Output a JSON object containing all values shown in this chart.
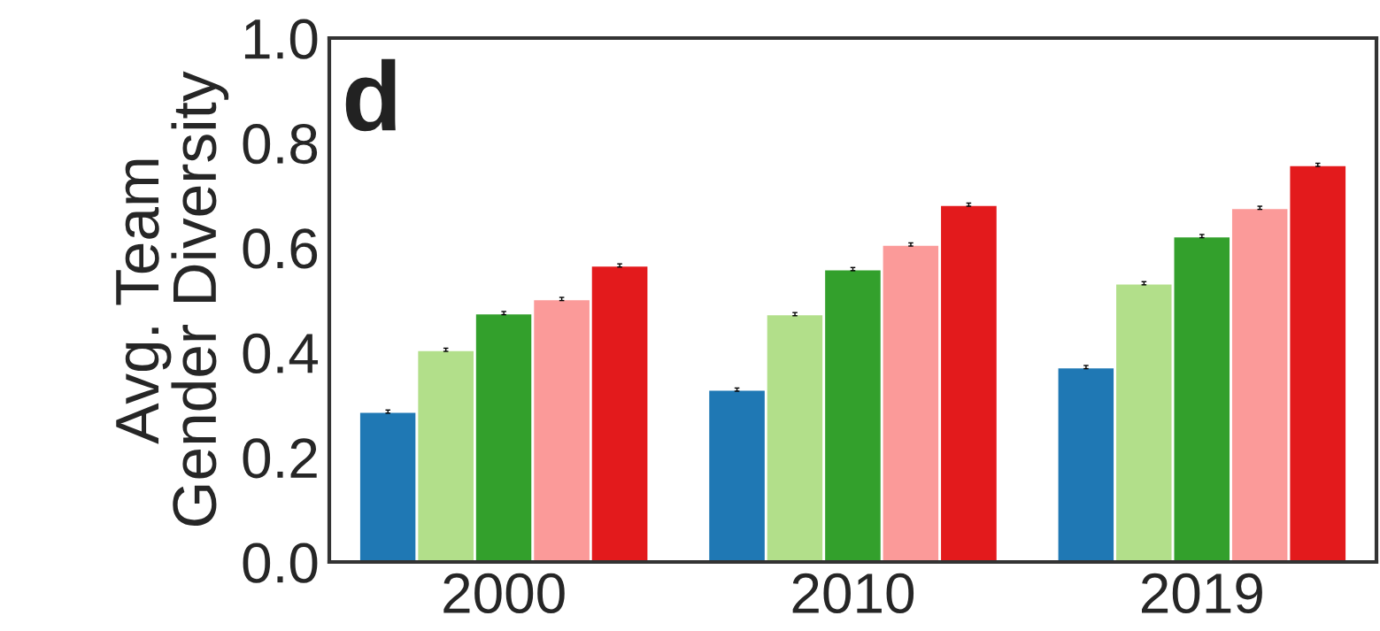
{
  "chart_data": {
    "type": "bar",
    "ylabel": "Avg. Team\nGender Diversity",
    "categories": [
      "2000",
      "2010",
      "2019"
    ],
    "series": [
      {
        "color": "#1f78b4",
        "values": [
          0.287,
          0.329,
          0.372
        ],
        "errors": [
          0.003,
          0.003,
          0.003
        ]
      },
      {
        "color": "#b2df8a",
        "values": [
          0.405,
          0.473,
          0.532
        ],
        "errors": [
          0.003,
          0.003,
          0.003
        ]
      },
      {
        "color": "#33a02c",
        "values": [
          0.475,
          0.559,
          0.622
        ],
        "errors": [
          0.003,
          0.003,
          0.003
        ]
      },
      {
        "color": "#fb9a99",
        "values": [
          0.502,
          0.606,
          0.676
        ],
        "errors": [
          0.003,
          0.003,
          0.003
        ]
      },
      {
        "color": "#e31a1c",
        "values": [
          0.566,
          0.682,
          0.758
        ],
        "errors": [
          0.003,
          0.003,
          0.003
        ]
      }
    ],
    "ylim": [
      0,
      1
    ],
    "yticks": [
      {
        "value": 0,
        "label": "0.0"
      },
      {
        "value": 0.2,
        "label": "0.2"
      },
      {
        "value": 0.4,
        "label": "0.4"
      },
      {
        "value": 0.6,
        "label": "0.6"
      },
      {
        "value": 0.8,
        "label": "0.8"
      },
      {
        "value": 1,
        "label": "1.0"
      }
    ],
    "grid": false,
    "legend": false,
    "annotations": [
      "d"
    ]
  }
}
